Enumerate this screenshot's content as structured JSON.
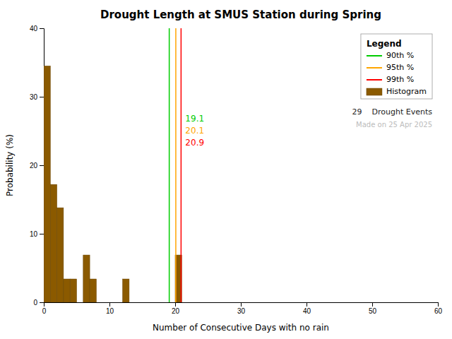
{
  "chart_data": {
    "type": "histogram",
    "title": "Drought Length at SMUS Station during Spring",
    "xlabel": "Number of Consecutive Days with no rain",
    "ylabel": "Probability (%)",
    "name": "Histogram",
    "color": "#8B5A00",
    "bins": [
      0,
      1,
      2,
      3,
      4,
      5,
      6,
      7,
      8,
      9,
      10,
      11,
      12,
      13,
      14,
      15,
      16,
      17,
      18,
      19,
      20,
      21
    ],
    "values": [
      34.5,
      17.2,
      13.8,
      3.4,
      3.4,
      0,
      6.9,
      3.4,
      0,
      0,
      0,
      0,
      3.4,
      0,
      0,
      0,
      0,
      0,
      0,
      0,
      6.9
    ],
    "lines": [
      {
        "name": "90th %",
        "color": "#00CC00",
        "x": 19.1,
        "label": "19.1"
      },
      {
        "name": "95th %",
        "color": "#FFA500",
        "x": 20.1,
        "label": "20.1"
      },
      {
        "name": "99th %",
        "color": "#FF0000",
        "x": 20.9,
        "label": "20.9"
      }
    ],
    "legend": "upper right",
    "legend_title": "Legend",
    "annotations": [
      {
        "text": "29    Drought Events"
      },
      {
        "text": "Made on 25 Apr 2025",
        "color": "#BBBBBB"
      }
    ],
    "xlim": [
      0,
      60
    ],
    "ylim": [
      0,
      40
    ],
    "xticks": [
      0,
      10,
      20,
      30,
      40,
      50,
      60
    ],
    "yticks": [
      0,
      10,
      20,
      30,
      40
    ]
  }
}
